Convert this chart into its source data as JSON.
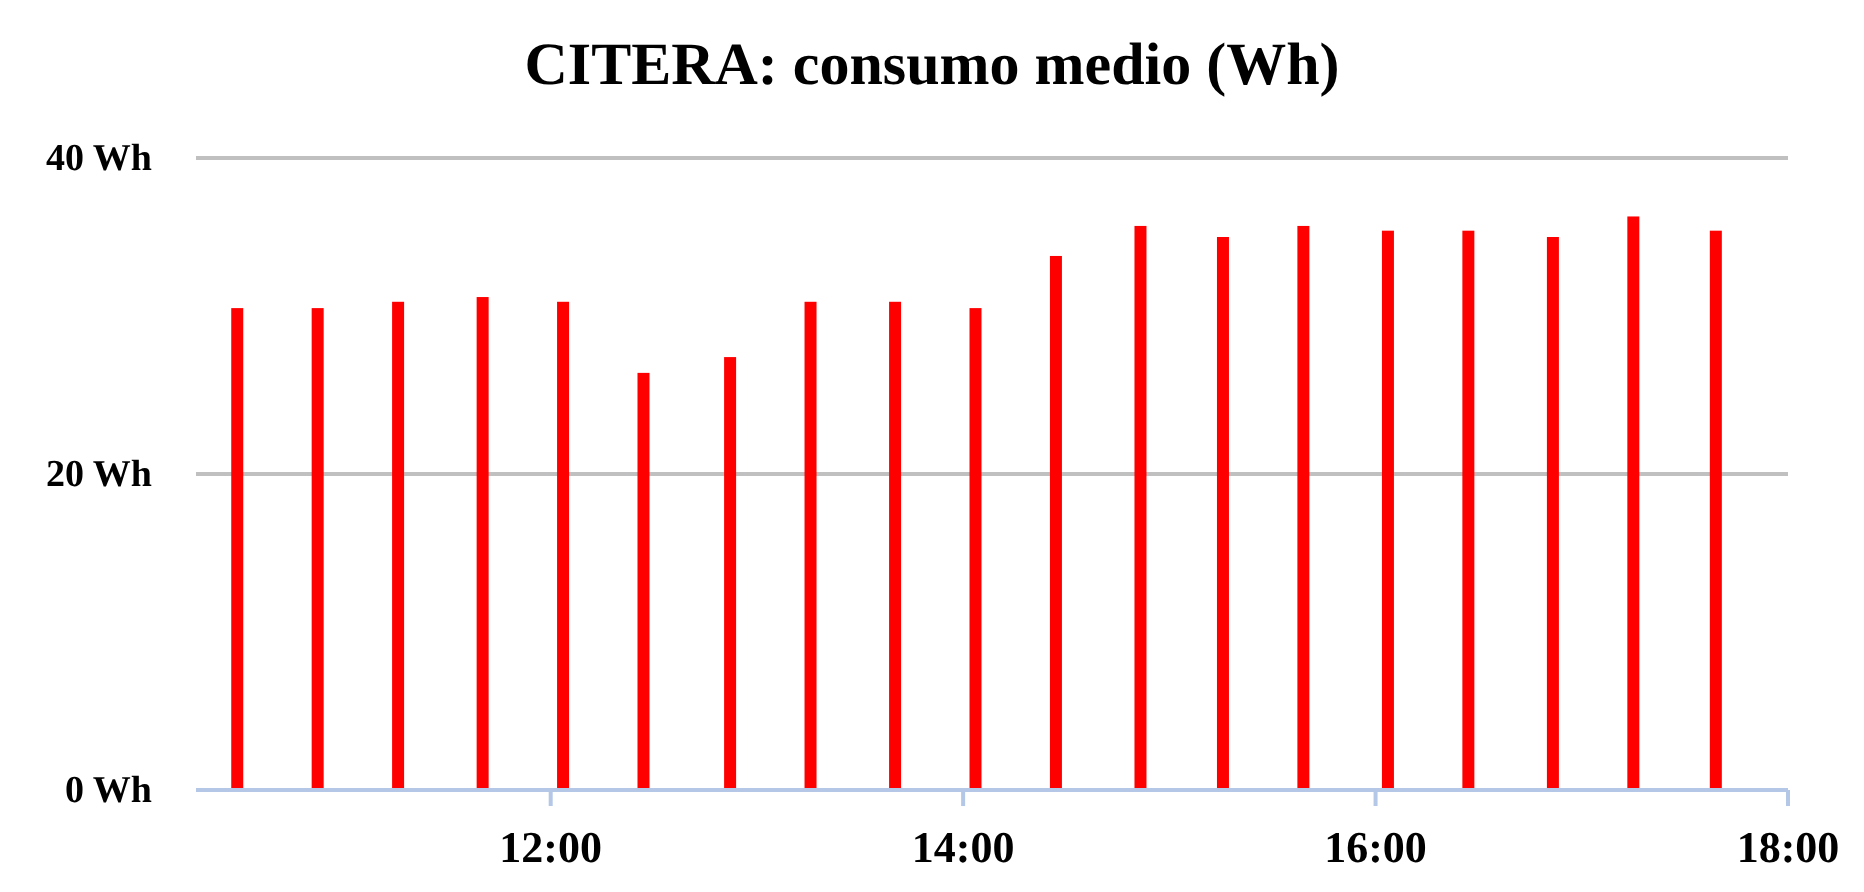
{
  "chart_data": {
    "type": "bar",
    "title": "CITERA: consumo medio (Wh)",
    "x": [
      10.48,
      10.87,
      11.26,
      11.67,
      12.06,
      12.45,
      12.87,
      13.26,
      13.67,
      14.06,
      14.45,
      14.86,
      15.26,
      15.65,
      16.06,
      16.45,
      16.86,
      17.25,
      17.65
    ],
    "series": [
      {
        "color": "#ff0000",
        "values": [
          30.5,
          30.5,
          30.9,
          31.2,
          30.9,
          26.4,
          27.4,
          30.9,
          30.9,
          30.5,
          33.8,
          35.7,
          35.0,
          35.7,
          35.4,
          35.4,
          35.0,
          36.3,
          35.4
        ]
      }
    ],
    "xlim": [
      10.28,
      18
    ],
    "xticks": [
      {
        "value": 12,
        "label": "12:00"
      },
      {
        "value": 14,
        "label": "14:00"
      },
      {
        "value": 16,
        "label": "16:00"
      },
      {
        "value": 18,
        "label": "18:00"
      }
    ],
    "ylim": [
      0,
      40
    ],
    "yticks": [
      {
        "value": 0,
        "label": "0 Wh"
      },
      {
        "value": 20,
        "label": "20 Wh"
      },
      {
        "value": 40,
        "label": "40 Wh"
      }
    ],
    "grid": "y"
  }
}
